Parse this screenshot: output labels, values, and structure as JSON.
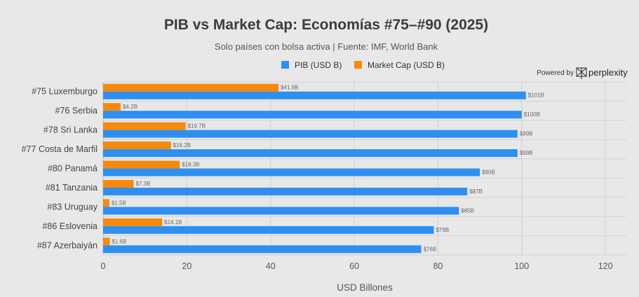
{
  "chart_data": {
    "type": "bar",
    "orientation": "horizontal",
    "title": "PIB vs Market Cap: Economías #75–#90 (2025)",
    "subtitle": "Solo países con bolsa activa | Fuente: IMF, World Bank",
    "xlabel": "USD Billones",
    "ylabel": "",
    "xlim": [
      0,
      125
    ],
    "xticks": [
      "0",
      "20",
      "40",
      "60",
      "80",
      "100",
      "120"
    ],
    "grid": true,
    "legend_position": "top-center",
    "categories": [
      "#75 Luxemburgo",
      "#76 Serbia",
      "#78 Sri Lanka",
      "#77 Costa de Marfil",
      "#80 Panamá",
      "#81 Tanzania",
      "#83 Uruguay",
      "#86 Eslovenia",
      "#87 Azerbaiyán"
    ],
    "series": [
      {
        "name": "PIB (USD B)",
        "color": "#2e8ff0",
        "values": [
          101,
          100,
          99,
          99,
          90,
          87,
          85,
          79,
          76
        ],
        "labels": [
          "$101B",
          "$100B",
          "$99B",
          "$99B",
          "$90B",
          "$87B",
          "$85B",
          "$79B",
          "$76B"
        ]
      },
      {
        "name": "Market Cap (USD B)",
        "color": "#f58a0b",
        "values": [
          41.9,
          4.2,
          19.7,
          16.2,
          18.3,
          7.3,
          1.5,
          14.1,
          1.6
        ],
        "labels": [
          "$41.9B",
          "$4.2B",
          "$19.7B",
          "$16.2B",
          "$18.3B",
          "$7.3B",
          "$1.5B",
          "$14.1B",
          "$1.6B"
        ]
      }
    ]
  },
  "branding": {
    "powered_by": "Powered by",
    "name": "perplexity",
    "icon": "perplexity-logo-icon"
  }
}
